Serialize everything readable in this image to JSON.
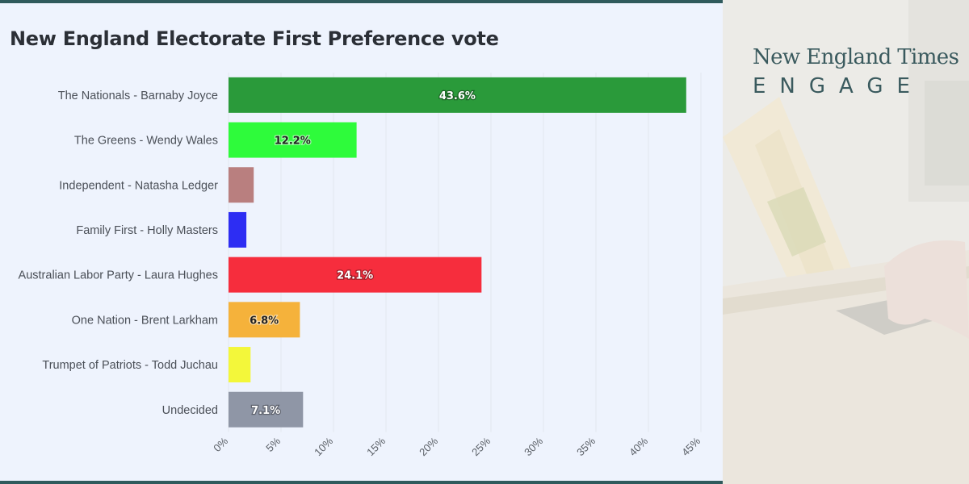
{
  "chart_data": {
    "type": "bar",
    "orientation": "horizontal",
    "title": "New England Electorate First Preference vote",
    "categories": [
      "The Nationals - Barnaby Joyce",
      "The Greens - Wendy Wales",
      "Independent - Natasha Ledger",
      "Family First - Holly Masters",
      "Australian Labor Party - Laura Hughes",
      "One Nation - Brent Larkham",
      "Trumpet of Patriots - Todd Juchau",
      "Undecided"
    ],
    "values": [
      43.6,
      12.2,
      2.4,
      1.7,
      24.1,
      6.8,
      2.1,
      7.1
    ],
    "data_labels": [
      "43.6%",
      "12.2%",
      "",
      "",
      "24.1%",
      "6.8%",
      "",
      "7.1%"
    ],
    "colors": [
      "#2a9a3a",
      "#2efb3b",
      "#b97f7f",
      "#2d2df3",
      "#f62d3d",
      "#f5b23b",
      "#f3f73a",
      "#8f96a6"
    ],
    "label_colors": [
      "#ffffff",
      "#222222",
      "#ffffff",
      "#ffffff",
      "#ffffff",
      "#222222",
      "#222222",
      "#ffffff"
    ],
    "xlim": [
      0,
      45
    ],
    "x_ticks": [
      0,
      5,
      10,
      15,
      20,
      25,
      30,
      35,
      40,
      45
    ],
    "x_tick_labels": [
      "0%",
      "5%",
      "10%",
      "15%",
      "20%",
      "25%",
      "30%",
      "35%",
      "40%",
      "45%"
    ],
    "grid": true,
    "legend": "none"
  },
  "brand": {
    "name": "New England Times",
    "tagline": "ENGAGE",
    "text_color": "#3a5a5e",
    "photo_icon": "ballot-box-photo"
  }
}
